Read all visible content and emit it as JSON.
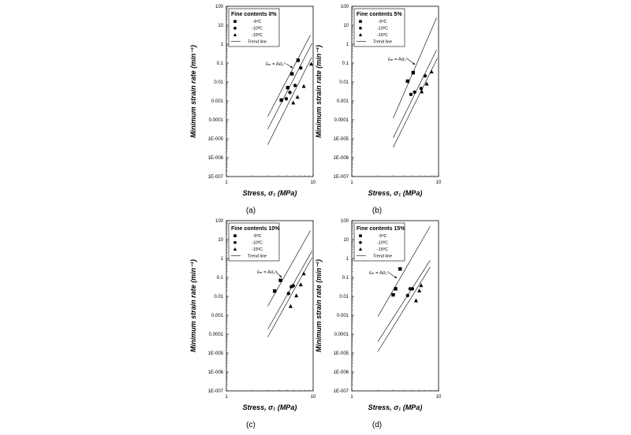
{
  "figure": {
    "captions": [
      "(a)",
      "(b)",
      "(c)",
      "(d)"
    ]
  },
  "chart_data": [
    {
      "type": "scatter",
      "legend_title": "Fine contents 0%",
      "xlabel": "Stress, σ₁ (MPa)",
      "ylabel": "Minimum strain rate (min⁻¹)",
      "x_scale": "log",
      "y_scale": "log",
      "xlim": [
        1,
        10
      ],
      "ylim": [
        1e-07,
        100
      ],
      "x_ticks": [
        "1",
        "10"
      ],
      "y_ticks": [
        "100",
        "10",
        "1",
        "0.1",
        "0.01",
        "0.001",
        "0.0001",
        "1E-005",
        "1E-006",
        "1E-007"
      ],
      "legend": [
        "-5ºC",
        "-10ºC",
        "-15ºC",
        "Trend line"
      ],
      "legend_position": "top-left",
      "annotation": "ε̇ₘ = Aσ₁ⁿ",
      "series": [
        {
          "name": "-5ºC",
          "marker": "square",
          "points": [
            [
              4.3,
              0.0011
            ],
            [
              5.1,
              0.005
            ],
            [
              5.7,
              0.027
            ],
            [
              6.7,
              0.14
            ]
          ]
        },
        {
          "name": "-10ºC",
          "marker": "circle",
          "points": [
            [
              4.9,
              0.0013
            ],
            [
              5.4,
              0.0028
            ],
            [
              6.2,
              0.0065
            ],
            [
              7.2,
              0.055
            ]
          ]
        },
        {
          "name": "-15ºC",
          "marker": "triangle",
          "points": [
            [
              5.9,
              0.0008
            ],
            [
              6.6,
              0.0016
            ],
            [
              7.8,
              0.006
            ],
            [
              9.5,
              0.09
            ]
          ]
        }
      ],
      "trend_lines": [
        {
          "x": [
            3.0,
            9.3
          ],
          "y": [
            0.00015,
            3.0
          ]
        },
        {
          "x": [
            3.0,
            9.7
          ],
          "y": [
            3.2e-05,
            1.1
          ]
        },
        {
          "x": [
            3.0,
            9.6
          ],
          "y": [
            4.8e-06,
            0.2
          ]
        }
      ]
    },
    {
      "type": "scatter",
      "legend_title": "Fine contents 5%",
      "xlabel": "Stress, σ₁ (MPa)",
      "ylabel": "Minimum strain rate (min⁻¹)",
      "x_scale": "log",
      "y_scale": "log",
      "xlim": [
        1,
        10
      ],
      "ylim": [
        1e-07,
        100
      ],
      "x_ticks": [
        "1",
        "10"
      ],
      "y_ticks": [
        "100",
        "10",
        "1",
        "0.1",
        "0.01",
        "0.001",
        "0.0001",
        "1E-005",
        "1E-006",
        "1E-007"
      ],
      "legend": [
        "-5ºC",
        "-10ºC",
        "-15ºC",
        "Trend line"
      ],
      "legend_position": "top-left",
      "annotation": "ε̇ₘ = Aσ₁ⁿ",
      "series": [
        {
          "name": "-5ºC",
          "marker": "square",
          "points": [
            [
              4.4,
              0.011
            ],
            [
              5.1,
              0.031
            ]
          ]
        },
        {
          "name": "-10ºC",
          "marker": "circle",
          "points": [
            [
              4.8,
              0.0022
            ],
            [
              5.3,
              0.0029
            ],
            [
              6.3,
              0.0045
            ],
            [
              7.0,
              0.021
            ]
          ]
        },
        {
          "name": "-15ºC",
          "marker": "triangle",
          "points": [
            [
              6.4,
              0.0031
            ],
            [
              7.3,
              0.008
            ],
            [
              8.3,
              0.035
            ]
          ]
        }
      ],
      "trend_lines": [
        {
          "x": [
            3.0,
            9.5
          ],
          "y": [
            0.00012,
            25
          ]
        },
        {
          "x": [
            3.0,
            9.5
          ],
          "y": [
            1.1e-05,
            0.5
          ]
        },
        {
          "x": [
            3.0,
            9.7
          ],
          "y": [
            3.5e-06,
            0.18
          ]
        }
      ]
    },
    {
      "type": "scatter",
      "legend_title": "Fine contents 10%",
      "xlabel": "Stress, σ₁ (MPa)",
      "ylabel": "Minimum strain rate (min⁻¹)",
      "x_scale": "log",
      "y_scale": "log",
      "xlim": [
        1,
        10
      ],
      "ylim": [
        1e-07,
        100
      ],
      "x_ticks": [
        "1",
        "10"
      ],
      "y_ticks": [
        "100",
        "10",
        "1",
        "0.1",
        "0.01",
        "0.001",
        "0.0001",
        "1E-005",
        "1E-006",
        "1E-007"
      ],
      "legend": [
        "-5ºC",
        "-10ºC",
        "-15ºC",
        "Trend line"
      ],
      "legend_position": "top-left",
      "annotation": "ε̇ₘ = Aσ₁ⁿ",
      "series": [
        {
          "name": "-5ºC",
          "marker": "square",
          "points": [
            [
              3.6,
              0.019
            ],
            [
              4.2,
              0.07
            ]
          ]
        },
        {
          "name": "-10ºC",
          "marker": "circle",
          "points": [
            [
              5.2,
              0.014
            ],
            [
              5.6,
              0.032
            ],
            [
              5.9,
              0.036
            ]
          ]
        },
        {
          "name": "-15ºC",
          "marker": "triangle",
          "points": [
            [
              5.5,
              0.003
            ],
            [
              6.4,
              0.011
            ],
            [
              7.2,
              0.042
            ],
            [
              7.8,
              0.16
            ]
          ]
        }
      ],
      "trend_lines": [
        {
          "x": [
            3.0,
            9.3
          ],
          "y": [
            0.003,
            30
          ]
        },
        {
          "x": [
            3.0,
            9.7
          ],
          "y": [
            0.00018,
            2.5
          ]
        },
        {
          "x": [
            3.0,
            9.7
          ],
          "y": [
            7e-05,
            1.1
          ]
        }
      ]
    },
    {
      "type": "scatter",
      "legend_title": "Fine contents 15%",
      "xlabel": "Stress, σ₁ (MPa)",
      "ylabel": "Minimum strain rate (min⁻¹)",
      "x_scale": "log",
      "y_scale": "log",
      "xlim": [
        1,
        10
      ],
      "ylim": [
        1e-07,
        100
      ],
      "x_ticks": [
        "1",
        "10"
      ],
      "y_ticks": [
        "100",
        "10",
        "1",
        "0.1",
        "0.01",
        "0.001",
        "0.0001",
        "1E-005",
        "1E-006",
        "1E-007"
      ],
      "legend": [
        "-5ºC",
        "-10ºC",
        "-15ºC",
        "Trend line"
      ],
      "legend_position": "top-left",
      "annotation": "ε̇ₘ = Aσ₁ⁿ",
      "series": [
        {
          "name": "-5ºC",
          "marker": "square",
          "points": [
            [
              3.0,
              0.012
            ],
            [
              3.2,
              0.025
            ],
            [
              3.6,
              0.28
            ]
          ]
        },
        {
          "name": "-10ºC",
          "marker": "circle",
          "points": [
            [
              4.4,
              0.011
            ],
            [
              4.7,
              0.025
            ],
            [
              5.0,
              0.025
            ]
          ]
        },
        {
          "name": "-15ºC",
          "marker": "triangle",
          "points": [
            [
              5.5,
              0.006
            ],
            [
              6.0,
              0.02
            ],
            [
              6.3,
              0.038
            ]
          ]
        }
      ],
      "trend_lines": [
        {
          "x": [
            2.0,
            8.0
          ],
          "y": [
            0.00085,
            50
          ]
        },
        {
          "x": [
            2.0,
            8.0
          ],
          "y": [
            4e-05,
            0.8
          ]
        },
        {
          "x": [
            2.0,
            8.0
          ],
          "y": [
            1.2e-05,
            0.35
          ]
        }
      ]
    }
  ]
}
